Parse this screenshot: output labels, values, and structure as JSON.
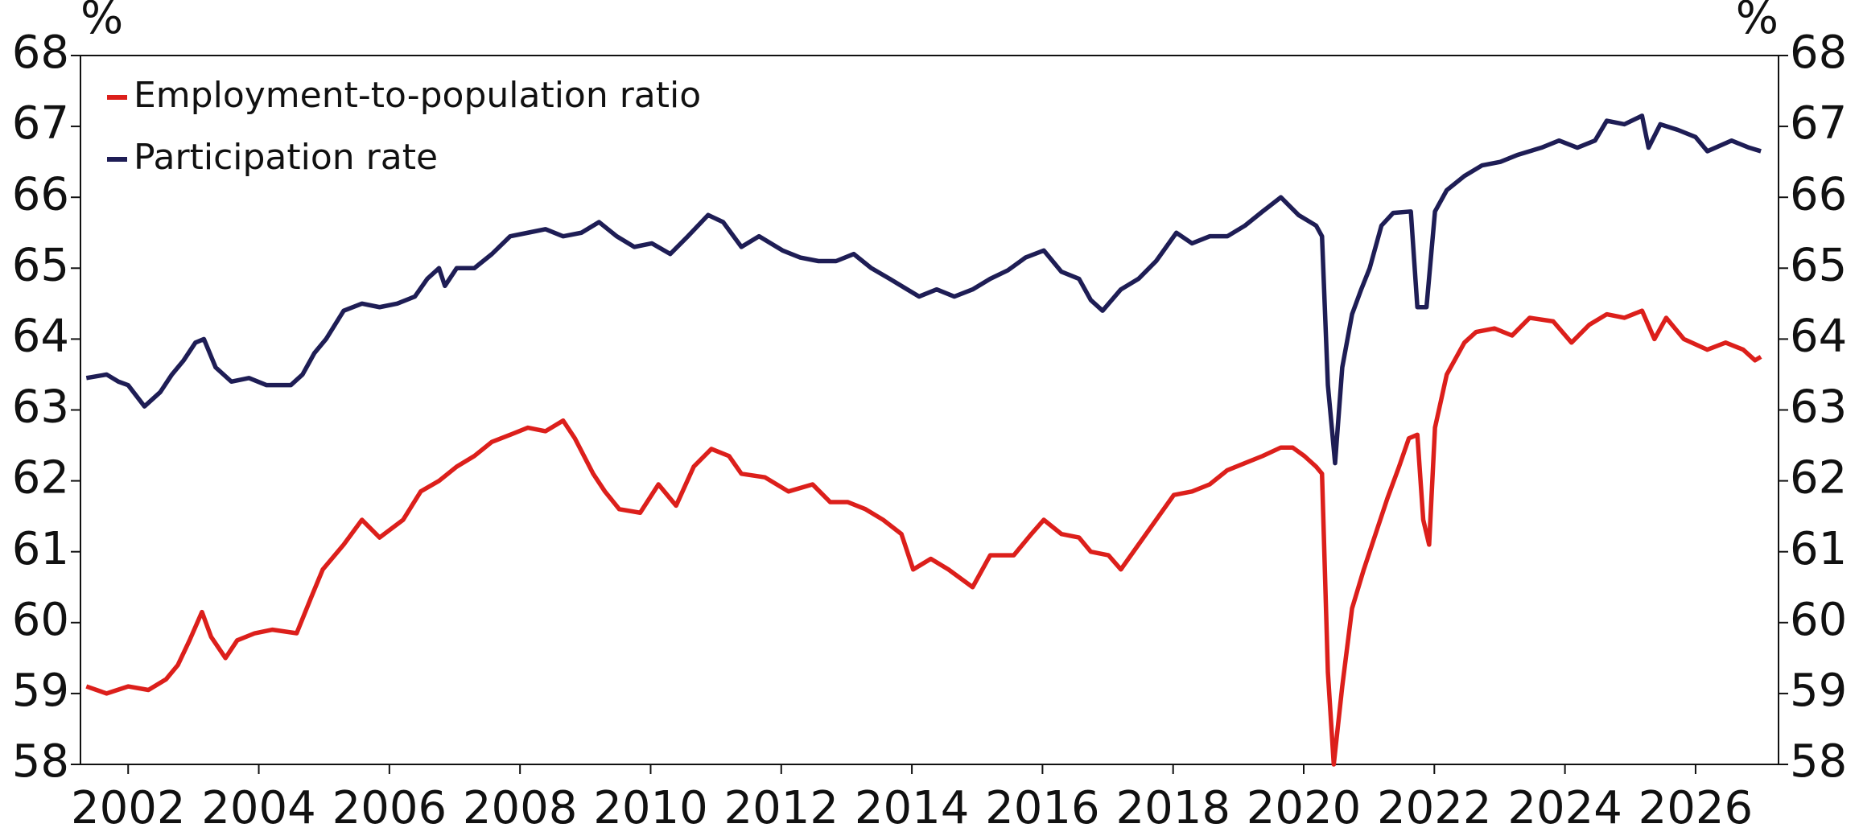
{
  "chart_data": {
    "type": "line",
    "ylabel": "%",
    "y2label": "%",
    "xlim": [
      2001.27,
      2027.27
    ],
    "xticks": [
      2002,
      2004,
      2006,
      2008,
      2010,
      2012,
      2014,
      2016,
      2018,
      2020,
      2022,
      2024,
      2026
    ],
    "ylim": [
      58,
      68
    ],
    "yticks": [
      58,
      59,
      60,
      61,
      62,
      63,
      64,
      65,
      66,
      67,
      68
    ],
    "y2lim": [
      58,
      68
    ],
    "y2ticks": [
      58,
      59,
      60,
      61,
      62,
      63,
      64,
      65,
      66,
      67,
      68
    ],
    "grid": false,
    "legend": "upper left",
    "series": [
      {
        "name": "Employment-to-population ratio",
        "color": "#dc1f1b",
        "x": [
          2001.36,
          2001.67,
          2002.0,
          2002.31,
          2002.58,
          2002.76,
          2002.94,
          2003.13,
          2003.27,
          2003.49,
          2003.67,
          2003.94,
          2004.21,
          2004.58,
          2004.8,
          2004.98,
          2005.3,
          2005.58,
          2005.85,
          2006.21,
          2006.48,
          2006.76,
          2007.03,
          2007.3,
          2007.57,
          2007.85,
          2008.12,
          2008.39,
          2008.66,
          2008.84,
          2009.12,
          2009.3,
          2009.52,
          2009.84,
          2010.12,
          2010.39,
          2010.66,
          2010.93,
          2011.2,
          2011.39,
          2011.75,
          2012.11,
          2012.48,
          2012.75,
          2013.02,
          2013.29,
          2013.56,
          2013.84,
          2014.02,
          2014.29,
          2014.56,
          2014.93,
          2015.2,
          2015.56,
          2015.83,
          2016.02,
          2016.29,
          2016.56,
          2016.74,
          2017.01,
          2017.2,
          2017.47,
          2017.74,
          2018.01,
          2018.29,
          2018.56,
          2018.83,
          2019.1,
          2019.37,
          2019.65,
          2019.83,
          2020.01,
          2020.19,
          2020.28,
          2020.37,
          2020.46,
          2020.59,
          2020.74,
          2020.92,
          2021.1,
          2021.28,
          2021.46,
          2021.61,
          2021.74,
          2021.83,
          2021.92,
          2022.01,
          2022.19,
          2022.46,
          2022.64,
          2022.92,
          2023.19,
          2023.46,
          2023.82,
          2024.1,
          2024.37,
          2024.64,
          2024.91,
          2025.18,
          2025.37,
          2025.55,
          2025.82,
          2026.18,
          2026.46,
          2026.73,
          2026.91,
          2027.0
        ],
        "values": [
          59.1,
          59.0,
          59.1,
          59.05,
          59.2,
          59.4,
          59.75,
          60.15,
          59.8,
          59.5,
          59.75,
          59.85,
          59.9,
          59.85,
          60.35,
          60.75,
          61.1,
          61.45,
          61.2,
          61.45,
          61.85,
          62.0,
          62.2,
          62.35,
          62.55,
          62.65,
          62.75,
          62.7,
          62.85,
          62.6,
          62.1,
          61.85,
          61.6,
          61.55,
          61.95,
          61.65,
          62.2,
          62.45,
          62.35,
          62.1,
          62.05,
          61.85,
          61.95,
          61.7,
          61.7,
          61.6,
          61.45,
          61.25,
          60.75,
          60.9,
          60.75,
          60.5,
          60.95,
          60.95,
          61.25,
          61.45,
          61.25,
          61.2,
          61.0,
          60.95,
          60.75,
          61.1,
          61.45,
          61.8,
          61.85,
          61.95,
          62.15,
          62.25,
          62.35,
          62.47,
          62.47,
          62.35,
          62.2,
          62.1,
          59.3,
          58.0,
          59.1,
          60.2,
          60.75,
          61.25,
          61.75,
          62.2,
          62.6,
          62.65,
          61.45,
          61.1,
          62.75,
          63.5,
          63.95,
          64.1,
          64.15,
          64.05,
          64.3,
          64.25,
          63.95,
          64.2,
          64.35,
          64.3,
          64.4,
          64.0,
          64.3,
          64.0,
          63.85,
          63.95,
          63.85,
          63.7,
          63.75
        ]
      },
      {
        "name": "Participation rate",
        "color": "#1e1d55",
        "x": [
          2001.36,
          2001.67,
          2001.85,
          2002.0,
          2002.25,
          2002.49,
          2002.67,
          2002.85,
          2003.03,
          2003.16,
          2003.34,
          2003.58,
          2003.85,
          2004.12,
          2004.49,
          2004.67,
          2004.85,
          2005.03,
          2005.3,
          2005.58,
          2005.85,
          2006.12,
          2006.39,
          2006.58,
          2006.76,
          2006.85,
          2007.03,
          2007.3,
          2007.57,
          2007.85,
          2008.12,
          2008.39,
          2008.66,
          2008.94,
          2009.21,
          2009.48,
          2009.75,
          2010.02,
          2010.3,
          2010.57,
          2010.88,
          2011.11,
          2011.39,
          2011.66,
          2012.02,
          2012.29,
          2012.57,
          2012.84,
          2013.11,
          2013.38,
          2013.66,
          2013.93,
          2014.11,
          2014.38,
          2014.65,
          2014.93,
          2015.2,
          2015.47,
          2015.74,
          2016.02,
          2016.29,
          2016.56,
          2016.74,
          2016.92,
          2017.2,
          2017.47,
          2017.74,
          2018.05,
          2018.29,
          2018.56,
          2018.83,
          2019.1,
          2019.37,
          2019.65,
          2019.92,
          2020.19,
          2020.28,
          2020.37,
          2020.48,
          2020.59,
          2020.74,
          2020.88,
          2021.01,
          2021.19,
          2021.37,
          2021.64,
          2021.74,
          2021.88,
          2022.01,
          2022.19,
          2022.46,
          2022.73,
          2023.01,
          2023.28,
          2023.64,
          2023.91,
          2024.19,
          2024.46,
          2024.64,
          2024.91,
          2025.18,
          2025.28,
          2025.46,
          2025.73,
          2026.0,
          2026.18,
          2026.55,
          2026.82,
          2027.0
        ],
        "values": [
          63.45,
          63.5,
          63.4,
          63.35,
          63.05,
          63.25,
          63.5,
          63.7,
          63.95,
          64.0,
          63.6,
          63.4,
          63.45,
          63.35,
          63.35,
          63.5,
          63.8,
          64.0,
          64.4,
          64.5,
          64.45,
          64.5,
          64.6,
          64.85,
          65.0,
          64.75,
          65.0,
          65.0,
          65.2,
          65.45,
          65.5,
          65.55,
          65.45,
          65.5,
          65.65,
          65.45,
          65.3,
          65.35,
          65.2,
          65.45,
          65.75,
          65.65,
          65.3,
          65.45,
          65.25,
          65.15,
          65.1,
          65.1,
          65.2,
          65.0,
          64.85,
          64.7,
          64.6,
          64.7,
          64.6,
          64.7,
          64.85,
          64.97,
          65.15,
          65.25,
          64.95,
          64.85,
          64.55,
          64.4,
          64.7,
          64.85,
          65.1,
          65.5,
          65.35,
          65.45,
          65.45,
          65.6,
          65.8,
          66.0,
          65.75,
          65.6,
          65.45,
          63.35,
          62.25,
          63.6,
          64.35,
          64.7,
          65.0,
          65.6,
          65.78,
          65.8,
          64.45,
          64.45,
          65.8,
          66.1,
          66.3,
          66.45,
          66.5,
          66.6,
          66.7,
          66.8,
          66.7,
          66.8,
          67.08,
          67.03,
          67.15,
          66.7,
          67.03,
          66.95,
          66.85,
          66.65,
          66.8,
          66.7,
          66.65
        ]
      }
    ]
  }
}
